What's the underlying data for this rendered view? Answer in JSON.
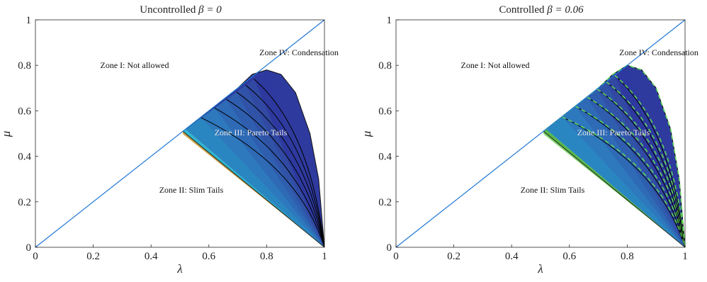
{
  "figure": {
    "panels": [
      {
        "title_prefix": "Uncontrolled ",
        "title_math": "β = 0",
        "zones": {
          "zone1": "Zone I: Not allowed",
          "zone2": "Zone II: Slim Tails",
          "zone3": "Zone III: Pareto Tails",
          "zone4": "Zone IV: Condensation"
        }
      },
      {
        "title_prefix": "Controlled ",
        "title_math": "β = 0.06",
        "zones": {
          "zone1": "Zone I: Not allowed",
          "zone2": "Zone II: Slim Tails",
          "zone3": "Zone III: Pareto Tails",
          "zone4": "Zone IV: Condensation"
        }
      }
    ],
    "xlabel": "λ",
    "ylabel": "μ",
    "ticks": [
      "0",
      "0.2",
      "0.4",
      "0.6",
      "0.8",
      "1"
    ]
  },
  "chart_data": [
    {
      "type": "area",
      "title": "Uncontrolled β = 0",
      "xlabel": "λ",
      "ylabel": "μ",
      "xlim": [
        0,
        1
      ],
      "ylim": [
        0,
        1
      ],
      "xticks": [
        0,
        0.2,
        0.4,
        0.6,
        0.8,
        1
      ],
      "yticks": [
        0,
        0.2,
        0.4,
        0.6,
        0.8,
        1
      ],
      "grid": false,
      "beta": 0,
      "diagonal": {
        "x": [
          0,
          1
        ],
        "y": [
          0,
          1
        ],
        "color": "#1f77d4"
      },
      "region_boundary": {
        "x": [
          0.52,
          0.6,
          0.7,
          0.75,
          0.8,
          0.85,
          0.9,
          0.95,
          0.98,
          1.0
        ],
        "y": [
          0.52,
          0.6,
          0.7,
          0.76,
          0.78,
          0.76,
          0.68,
          0.5,
          0.3,
          0.0
        ]
      },
      "slim_tail_edge": {
        "x": [
          0.51,
          1.0
        ],
        "y": [
          0.51,
          0.0
        ]
      },
      "contour_levels": [
        0.22,
        0.38,
        0.52,
        0.64,
        0.75,
        0.85
      ],
      "colors": {
        "condensation": "#2e3a9e",
        "pareto": "#2f6fb4",
        "edge": "#2fb8d0",
        "slim": "#c8a24a",
        "contour": "#000000"
      }
    },
    {
      "type": "area",
      "title": "Controlled β = 0.06",
      "xlabel": "λ",
      "ylabel": "μ",
      "xlim": [
        0,
        1
      ],
      "ylim": [
        0,
        1
      ],
      "xticks": [
        0,
        0.2,
        0.4,
        0.6,
        0.8,
        1
      ],
      "yticks": [
        0,
        0.2,
        0.4,
        0.6,
        0.8,
        1
      ],
      "grid": false,
      "beta": 0.06,
      "diagonal": {
        "x": [
          0,
          1
        ],
        "y": [
          0,
          1
        ],
        "color": "#1f77d4"
      },
      "region_boundary": {
        "x": [
          0.52,
          0.6,
          0.7,
          0.75,
          0.8,
          0.85,
          0.9,
          0.95,
          0.98,
          1.0
        ],
        "y": [
          0.52,
          0.6,
          0.7,
          0.76,
          0.8,
          0.78,
          0.7,
          0.52,
          0.3,
          0.0
        ]
      },
      "slim_tail_edge": {
        "x": [
          0.51,
          1.0
        ],
        "y": [
          0.51,
          0.0
        ]
      },
      "contour_levels": [
        0.22,
        0.38,
        0.52,
        0.64,
        0.75,
        0.85
      ],
      "colors": {
        "condensation": "#2e3a9e",
        "pareto": "#2f6fb4",
        "edge": "#58b948",
        "slim": "#7fd46a",
        "contour": "#000000",
        "controlled_contour": "#5fd35a"
      }
    }
  ]
}
